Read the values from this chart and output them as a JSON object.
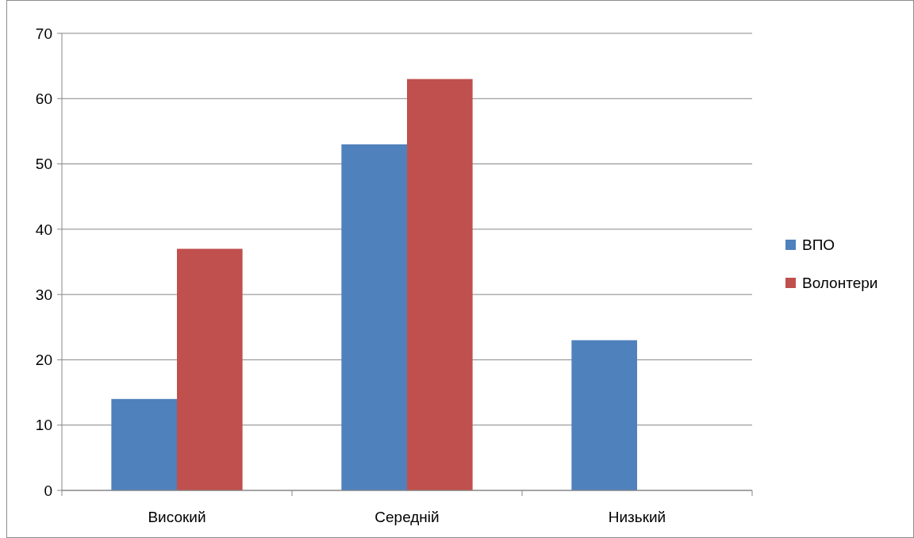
{
  "chart_data": {
    "type": "bar",
    "categories": [
      "Високий",
      "Середній",
      "Низький"
    ],
    "series": [
      {
        "name": "ВПО",
        "color": "#4f81bd",
        "values": [
          14,
          53,
          23
        ]
      },
      {
        "name": "Волонтери",
        "color": "#c0504d",
        "values": [
          37,
          63,
          0
        ]
      }
    ],
    "ylim": [
      0,
      70
    ],
    "yticks": [
      0,
      10,
      20,
      30,
      40,
      50,
      60,
      70
    ],
    "grid": "y",
    "legend": "right"
  }
}
